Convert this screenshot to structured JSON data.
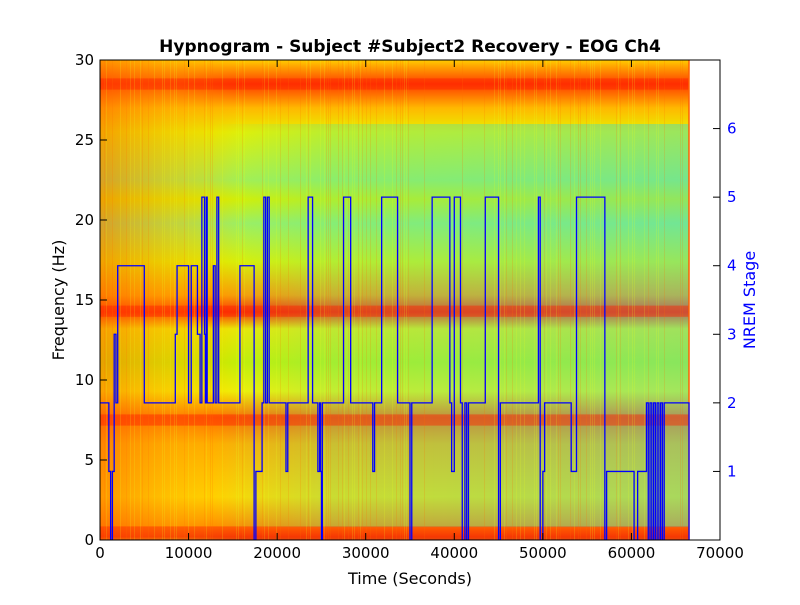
{
  "chart_data": {
    "type": "heatmap",
    "title": "Hypnogram - Subject #Subject2 Recovery - EOG Ch4",
    "xlabel": "Time (Seconds)",
    "ylabel": "Frequency (Hz)",
    "y2label": "NREM Stage",
    "xlim": [
      0,
      70000
    ],
    "ylim": [
      0,
      30
    ],
    "y2lim": [
      0,
      7
    ],
    "x_ticks": [
      0,
      10000,
      20000,
      30000,
      40000,
      50000,
      60000,
      70000
    ],
    "y_ticks": [
      0,
      5,
      10,
      15,
      20,
      25,
      30
    ],
    "y2_ticks": [
      1,
      2,
      3,
      4,
      5,
      6
    ],
    "spectrogram": {
      "x_extent": [
        0,
        66500
      ],
      "colormap": "jet",
      "high_power_bands_hz": [
        0.5,
        7.5,
        14.3,
        28.5
      ],
      "low_power_bands_hz": [
        11,
        19.5,
        22.5
      ]
    },
    "series": [
      {
        "name": "NREM Stage",
        "color": "#0000ff",
        "step": "post",
        "x": [
          0,
          1000,
          1200,
          1400,
          1600,
          1800,
          2000,
          5000,
          8500,
          8700,
          10000,
          10300,
          11000,
          11300,
          11500,
          11800,
          11900,
          12000,
          12100,
          12800,
          13000,
          13200,
          13400,
          13600,
          13800,
          15800,
          17400,
          17600,
          18300,
          18500,
          18700,
          18900,
          19100,
          21000,
          21200,
          23500,
          24000,
          24600,
          24800,
          24900,
          25000,
          25100,
          27500,
          28300,
          30800,
          31000,
          31800,
          33600,
          35000,
          35200,
          37500,
          39500,
          39700,
          40000,
          40700,
          40900,
          41200,
          41400,
          41600,
          41800,
          43500,
          45000,
          45200,
          49500,
          49700,
          50000,
          50200,
          53000,
          53200,
          53800,
          57000,
          57200,
          60300,
          60700,
          61700,
          61900,
          62100,
          62300,
          62500,
          62700,
          62900,
          63100,
          63300,
          63500,
          63700,
          66500
        ],
        "y": [
          2,
          1,
          0,
          1,
          3,
          2,
          4,
          2,
          3,
          4,
          2,
          4,
          3,
          2,
          5,
          3,
          2,
          5,
          2,
          4,
          2,
          5,
          2,
          2,
          2,
          4,
          0,
          1,
          2,
          5,
          2,
          5,
          2,
          1,
          2,
          5,
          2,
          1,
          2,
          1,
          0,
          2,
          5,
          2,
          1,
          2,
          5,
          2,
          0,
          2,
          5,
          2,
          1,
          5,
          2,
          0,
          2,
          0,
          2,
          2,
          5,
          0,
          2,
          5,
          0,
          1,
          2,
          2,
          1,
          5,
          0,
          1,
          0,
          1,
          2,
          0,
          2,
          0,
          2,
          0,
          2,
          0,
          2,
          0,
          2,
          0
        ]
      }
    ]
  }
}
